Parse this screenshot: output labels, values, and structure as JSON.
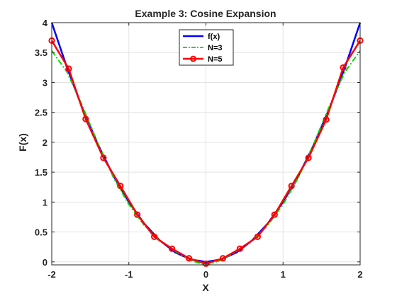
{
  "chart_data": {
    "type": "line",
    "title": "Example 3: Cosine Expansion",
    "xlabel": "X",
    "ylabel": "F(x)",
    "xlim": [
      -2,
      2
    ],
    "ylim": [
      -0.05,
      4
    ],
    "grid": true,
    "legend_position": "top-center",
    "x_ticks": [
      -2,
      -1,
      0,
      1,
      2
    ],
    "x_tick_labels": [
      "-2",
      "-1",
      "0",
      "1",
      "2"
    ],
    "y_ticks": [
      0,
      0.5,
      1,
      1.5,
      2,
      2.5,
      3,
      3.5,
      4
    ],
    "y_tick_labels": [
      "0",
      "0.5",
      "1",
      "1.5",
      "2",
      "2.5",
      "3",
      "3.5",
      "4"
    ],
    "series": [
      {
        "name": "f(x)",
        "color": "#0000ff",
        "style": "solid",
        "marker": "none",
        "x": [
          -2,
          -1.8,
          -1.6,
          -1.4,
          -1.2,
          -1,
          -0.8,
          -0.6,
          -0.4,
          -0.2,
          0,
          0.2,
          0.4,
          0.6,
          0.8,
          1,
          1.2,
          1.4,
          1.6,
          1.8,
          2
        ],
        "y": [
          4,
          3.24,
          2.56,
          1.96,
          1.44,
          1,
          0.64,
          0.36,
          0.16,
          0.04,
          0,
          0.04,
          0.16,
          0.36,
          0.64,
          1,
          1.44,
          1.96,
          2.56,
          3.24,
          4
        ]
      },
      {
        "name": "N=3",
        "color": "#00dd00",
        "style": "dashdot",
        "marker": "none",
        "x": [
          -2,
          -1.8,
          -1.6,
          -1.4,
          -1.2,
          -1,
          -0.8,
          -0.6,
          -0.4,
          -0.2,
          0,
          0.2,
          0.4,
          0.6,
          0.8,
          1,
          1.2,
          1.4,
          1.6,
          1.8,
          2
        ],
        "y": [
          3.53,
          3.17,
          2.6,
          1.98,
          1.41,
          0.96,
          0.61,
          0.36,
          0.18,
          0.03,
          -0.06,
          0.03,
          0.18,
          0.36,
          0.61,
          0.96,
          1.41,
          1.98,
          2.6,
          3.17,
          3.53
        ]
      },
      {
        "name": "N=5",
        "color": "#ff0000",
        "style": "solid",
        "marker": "circle",
        "x": [
          -2,
          -1.78,
          -1.56,
          -1.33,
          -1.11,
          -0.89,
          -0.67,
          -0.44,
          -0.22,
          0,
          0.22,
          0.44,
          0.67,
          0.89,
          1.11,
          1.33,
          1.56,
          1.78,
          2
        ],
        "y": [
          3.7,
          3.23,
          2.39,
          1.74,
          1.27,
          0.79,
          0.42,
          0.22,
          0.06,
          -0.03,
          0.06,
          0.22,
          0.42,
          0.79,
          1.27,
          1.74,
          2.38,
          3.25,
          3.7
        ]
      }
    ]
  }
}
